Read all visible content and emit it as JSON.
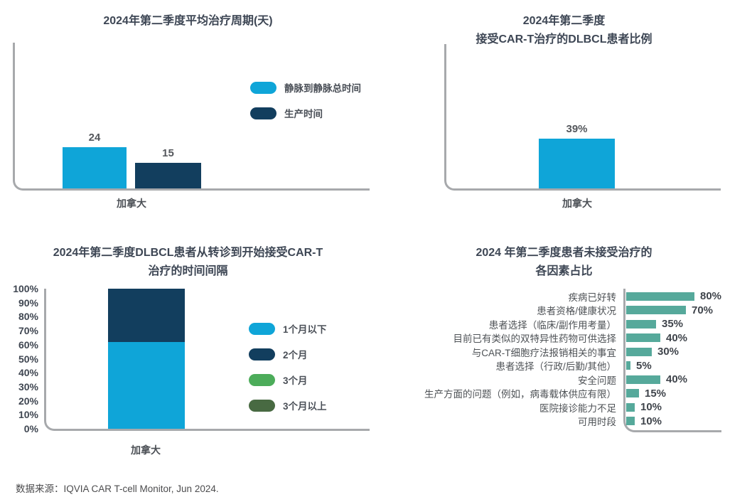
{
  "source_note": "数据来源：IQVIA CAR T-cell Monitor, Jun 2024.",
  "colors": {
    "light_blue": "#0FA5D8",
    "dark_navy": "#123E5E",
    "green": "#4CAC5A",
    "dark_green": "#486A42",
    "teal": "#56A99B",
    "axis_gray": "#A7A9AC",
    "title_text": "#3D4654",
    "value_text": "#54575C",
    "label_text": "#4E5256"
  },
  "chart_data": [
    {
      "id": "avg-treatment-cycle",
      "type": "bar",
      "variant": "grouped-vertical",
      "title": "2024年第二季度平均治疗周期(天)",
      "categories": [
        "加拿大"
      ],
      "series": [
        {
          "name": "静脉到静脉总时间",
          "color_key": "light_blue",
          "values": [
            24
          ],
          "value_labels": [
            "24"
          ]
        },
        {
          "name": "生产时间",
          "color_key": "dark_navy",
          "values": [
            15
          ],
          "value_labels": [
            "15"
          ]
        }
      ],
      "x_label": "加拿大",
      "ylabel": "",
      "grid": false,
      "legend_position": "right"
    },
    {
      "id": "dlbcl-cart-treated-share",
      "type": "bar",
      "variant": "single-vertical",
      "title_lines": [
        "2024年第二季度",
        "接受CAR-T治疗的DLBCL患者比例"
      ],
      "categories": [
        "加拿大"
      ],
      "values": [
        39
      ],
      "value_labels": [
        "39%"
      ],
      "color_key": "light_blue",
      "x_label": "加拿大",
      "grid": false,
      "legend_position": "none"
    },
    {
      "id": "referral-to-treatment-interval",
      "type": "bar",
      "variant": "stacked-vertical",
      "title_lines": [
        "2024年第二季度DLBCL患者从转诊到开始接受CAR-T",
        "治疗的时间间隔"
      ],
      "categories": [
        "加拿大"
      ],
      "y_ticks": [
        "100%",
        "90%",
        "80%",
        "70%",
        "60%",
        "50%",
        "40%",
        "30%",
        "20%",
        "10%",
        "0%"
      ],
      "ylim": [
        0,
        100
      ],
      "segments": [
        {
          "name": "1个月以下",
          "color_key": "light_blue",
          "value": 62
        },
        {
          "name": "2个月",
          "color_key": "dark_navy",
          "value": 38
        },
        {
          "name": "3个月",
          "color_key": "green",
          "value": 0
        },
        {
          "name": "3个月以上",
          "color_key": "dark_green",
          "value": 0
        }
      ],
      "x_label": "加拿大",
      "grid": false,
      "legend_position": "right"
    },
    {
      "id": "reasons-not-treated",
      "type": "bar",
      "variant": "horizontal",
      "title_lines": [
        "2024 年第二季度患者未接受治疗的",
        "各因素占比"
      ],
      "categories": [
        "疾病已好转",
        "患者资格/健康状况",
        "患者选择（临床/副作用考量）",
        "目前已有类似的双特异性药物可供选择",
        "与CAR-T细胞疗法报销相关的事宜",
        "患者选择（行政/后勤/其他）",
        "安全问题",
        "生产方面的问题（例如，病毒载体供应有限）",
        "医院接诊能力不足",
        "可用时段"
      ],
      "values": [
        80,
        70,
        35,
        40,
        30,
        5,
        40,
        15,
        10,
        10
      ],
      "value_labels": [
        "80%",
        "70%",
        "35%",
        "40%",
        "30%",
        "5%",
        "40%",
        "15%",
        "10%",
        "10%"
      ],
      "color_key": "teal",
      "xlim": [
        0,
        100
      ],
      "grid": false,
      "legend_position": "none"
    }
  ]
}
